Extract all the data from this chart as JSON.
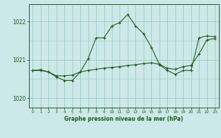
{
  "title": "Graphe pression niveau de la mer (hPa)",
  "bg_color": "#cde8e8",
  "grid_color": "#9cc8c8",
  "line_color": "#1a5c1a",
  "xlim": [
    -0.5,
    23.5
  ],
  "ylim": [
    1019.75,
    1022.45
  ],
  "yticks": [
    1020,
    1021,
    1022
  ],
  "xticks": [
    0,
    1,
    2,
    3,
    4,
    5,
    6,
    7,
    8,
    9,
    10,
    11,
    12,
    13,
    14,
    15,
    16,
    17,
    18,
    19,
    20,
    21,
    22,
    23
  ],
  "series1_x": [
    0,
    1,
    2,
    3,
    4,
    5,
    6,
    7,
    8,
    9,
    10,
    11,
    12,
    13,
    14,
    15,
    16,
    17,
    18,
    19,
    20,
    21,
    22,
    23
  ],
  "series1_y": [
    1020.72,
    1020.72,
    1020.68,
    1020.55,
    1020.46,
    1020.46,
    1020.68,
    1021.03,
    1021.57,
    1021.57,
    1021.88,
    1021.97,
    1022.18,
    1021.88,
    1021.68,
    1021.32,
    1020.87,
    1020.72,
    1020.62,
    1020.72,
    1020.72,
    1021.57,
    1021.62,
    1021.6
  ],
  "series2_x": [
    0,
    1,
    2,
    3,
    4,
    5,
    6,
    7,
    8,
    9,
    10,
    11,
    12,
    13,
    14,
    15,
    16,
    17,
    18,
    19,
    20,
    21,
    22,
    23
  ],
  "series2_y": [
    1020.72,
    1020.74,
    1020.68,
    1020.58,
    1020.58,
    1020.6,
    1020.68,
    1020.72,
    1020.75,
    1020.78,
    1020.8,
    1020.82,
    1020.85,
    1020.87,
    1020.9,
    1020.92,
    1020.88,
    1020.78,
    1020.75,
    1020.82,
    1020.85,
    1021.15,
    1021.52,
    1021.55
  ]
}
